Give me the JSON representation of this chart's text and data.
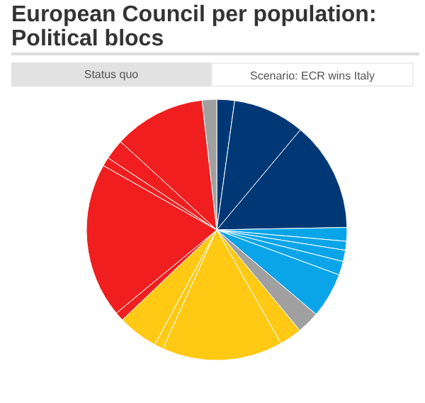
{
  "chart_data": {
    "type": "pie",
    "title": "European Council per population: Political blocs",
    "annotations": [
      "Status quo",
      "Scenario: ECR wins Italy"
    ],
    "categories": [
      null,
      null,
      null,
      null,
      null,
      null,
      null,
      null,
      null,
      null,
      null,
      null,
      null,
      null,
      null,
      null,
      null,
      null,
      null
    ],
    "values": [
      2.2,
      8.9,
      13.6,
      1.7,
      1.1,
      1.4,
      1.7,
      5.6,
      2.8,
      2.8,
      15.0,
      1.1,
      5.0,
      1.1,
      19.2,
      1.1,
      2.5,
      11.4,
      1.8
    ],
    "colors": [
      "#003876",
      "#003876",
      "#003876",
      "#0aa5e8",
      "#0aa5e8",
      "#0aa5e8",
      "#0aa5e8",
      "#0aa5e8",
      "#a0a0a0",
      "#ffc914",
      "#ffc914",
      "#ffc914",
      "#ffc914",
      "#f01e1e",
      "#f01e1e",
      "#f01e1e",
      "#f01e1e",
      "#f01e1e",
      "#a0a0a0"
    ]
  }
}
